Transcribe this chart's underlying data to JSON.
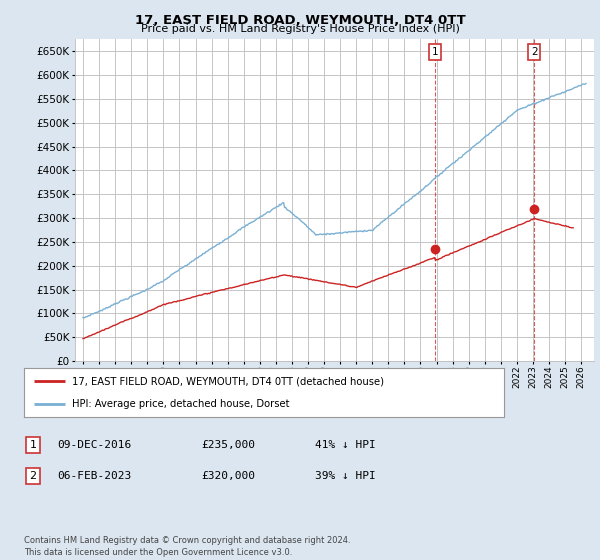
{
  "title": "17, EAST FIELD ROAD, WEYMOUTH, DT4 0TT",
  "subtitle": "Price paid vs. HM Land Registry's House Price Index (HPI)",
  "ytick_values": [
    0,
    50000,
    100000,
    150000,
    200000,
    250000,
    300000,
    350000,
    400000,
    450000,
    500000,
    550000,
    600000,
    650000
  ],
  "xlim_start": 1994.5,
  "xlim_end": 2026.8,
  "ylim_min": 0,
  "ylim_max": 675000,
  "hpi_color": "#7ab0d4",
  "price_color": "#cc2222",
  "marker1_date": 2016.92,
  "marker1_price": 235000,
  "marker2_date": 2023.08,
  "marker2_price": 320000,
  "legend_line1": "17, EAST FIELD ROAD, WEYMOUTH, DT4 0TT (detached house)",
  "legend_line2": "HPI: Average price, detached house, Dorset",
  "table_row1": [
    "1",
    "09-DEC-2016",
    "£235,000",
    "41% ↓ HPI"
  ],
  "table_row2": [
    "2",
    "06-FEB-2023",
    "£320,000",
    "39% ↓ HPI"
  ],
  "footnote": "Contains HM Land Registry data © Crown copyright and database right 2024.\nThis data is licensed under the Open Government Licence v3.0.",
  "background_color": "#dce6f0",
  "plot_bg_color": "#dce6f0",
  "grid_color": "#bbbbbb",
  "inner_bg_color": "#ffffff"
}
